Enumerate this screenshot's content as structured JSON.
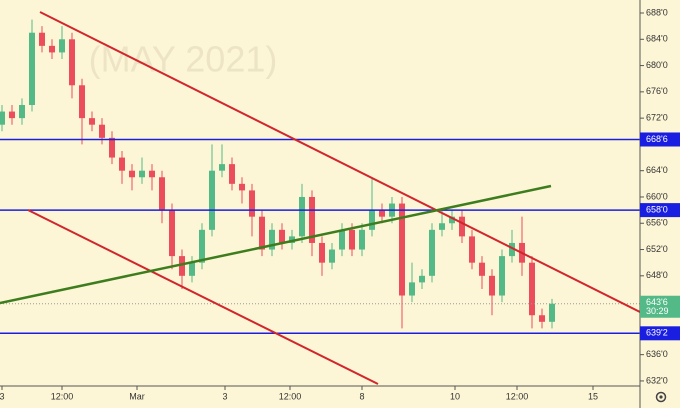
{
  "chart_data": {
    "type": "candlestick",
    "watermark": "(MAY 2021)",
    "x": [
      0,
      1,
      2,
      3,
      4,
      5,
      6,
      7,
      8,
      9,
      10,
      11,
      12,
      13,
      14,
      15,
      16,
      17,
      18,
      19,
      20,
      21,
      22,
      23,
      24,
      25,
      26,
      27,
      28,
      29,
      30,
      31,
      32,
      33,
      34,
      35,
      36,
      37,
      38,
      39,
      40,
      41,
      42,
      43,
      44,
      45,
      46,
      47,
      48,
      49,
      50,
      51,
      52,
      53,
      54,
      55
    ],
    "open": [
      671,
      673,
      672,
      674,
      685,
      683,
      682,
      684,
      677,
      672,
      671,
      669,
      666,
      664,
      663,
      664,
      663,
      658,
      651,
      648,
      650,
      655,
      664,
      665,
      662,
      661,
      657,
      652,
      655,
      653,
      654,
      660,
      653,
      650,
      652,
      655,
      652,
      655,
      658,
      657,
      659,
      645,
      647,
      648,
      655,
      656,
      657,
      654,
      650,
      648,
      645,
      651,
      653,
      650,
      642,
      641
    ],
    "high": [
      674,
      674,
      675,
      687,
      686,
      684,
      686,
      685,
      678,
      673,
      672,
      670,
      667,
      665,
      666,
      665,
      664,
      659,
      652,
      651,
      656,
      668,
      668,
      666,
      663,
      662,
      658,
      656,
      656,
      655,
      662,
      661,
      654,
      653,
      656,
      656,
      656,
      663,
      659,
      660,
      660,
      650,
      649,
      656,
      658,
      658,
      658,
      655,
      651,
      649,
      652,
      655,
      657,
      651,
      643,
      644.5
    ],
    "low": [
      670,
      671,
      671,
      673,
      682,
      681,
      681,
      675,
      668,
      670,
      668,
      665,
      662,
      661,
      662,
      661,
      656,
      649,
      646,
      647,
      649,
      654,
      663,
      661,
      659,
      654,
      651,
      651,
      652,
      652,
      653,
      651,
      648,
      649,
      651,
      651,
      651,
      654,
      656,
      656,
      640,
      644,
      646,
      647,
      654,
      655,
      653,
      649,
      646,
      642,
      644,
      650,
      648,
      640,
      640,
      640
    ],
    "close": [
      673,
      672,
      674,
      685,
      683,
      682,
      684,
      677,
      672,
      671,
      669,
      666,
      664,
      663,
      664,
      663,
      658,
      651,
      648,
      650,
      655,
      664,
      665,
      662,
      661,
      657,
      652,
      655,
      653,
      654,
      660,
      653,
      650,
      652,
      655,
      652,
      655,
      658,
      657,
      659,
      645,
      647,
      648,
      655,
      656,
      657,
      654,
      650,
      648,
      645,
      651,
      653,
      650,
      642,
      641,
      643.75
    ],
    "up_color": "#53b987",
    "down_color": "#eb4d5c",
    "xlim": [
      -0.2,
      63.8
    ],
    "xticks": [
      {
        "value": 0,
        "label": "3"
      },
      {
        "value": 6,
        "label": "12:00"
      },
      {
        "value": 13.5,
        "label": "Mar"
      },
      {
        "value": 22.3,
        "label": "3"
      },
      {
        "value": 28.8,
        "label": "12:00"
      },
      {
        "value": 36,
        "label": "8"
      },
      {
        "value": 45.3,
        "label": "10"
      },
      {
        "value": 51.5,
        "label": "12:00"
      },
      {
        "value": 59.1,
        "label": "15"
      }
    ],
    "ylim": [
      631.23,
      689.98
    ],
    "yticks": [
      {
        "value": 632,
        "label": "632'0"
      },
      {
        "value": 636,
        "label": "636'0"
      },
      {
        "value": 648,
        "label": "648'0"
      },
      {
        "value": 652,
        "label": "652'0"
      },
      {
        "value": 656,
        "label": "656'0"
      },
      {
        "value": 660,
        "label": "660'0"
      },
      {
        "value": 664,
        "label": "664'0"
      },
      {
        "value": 672,
        "label": "672'0"
      },
      {
        "value": 676,
        "label": "676'0"
      },
      {
        "value": 680,
        "label": "680'0"
      },
      {
        "value": 684,
        "label": "684'0"
      },
      {
        "value": 688,
        "label": "688'0"
      }
    ],
    "hlines": [
      {
        "value": 668.75,
        "label": "668'6",
        "color": "#1a1ee0"
      },
      {
        "value": 658,
        "label": "658'0",
        "color": "#1a1ee0"
      },
      {
        "value": 639.25,
        "label": "639'2",
        "color": "#1a1ee0"
      }
    ],
    "last_price": {
      "value": 643.75,
      "label": "643'6",
      "countdown": "30:29",
      "color": "#53b987"
    }
  }
}
